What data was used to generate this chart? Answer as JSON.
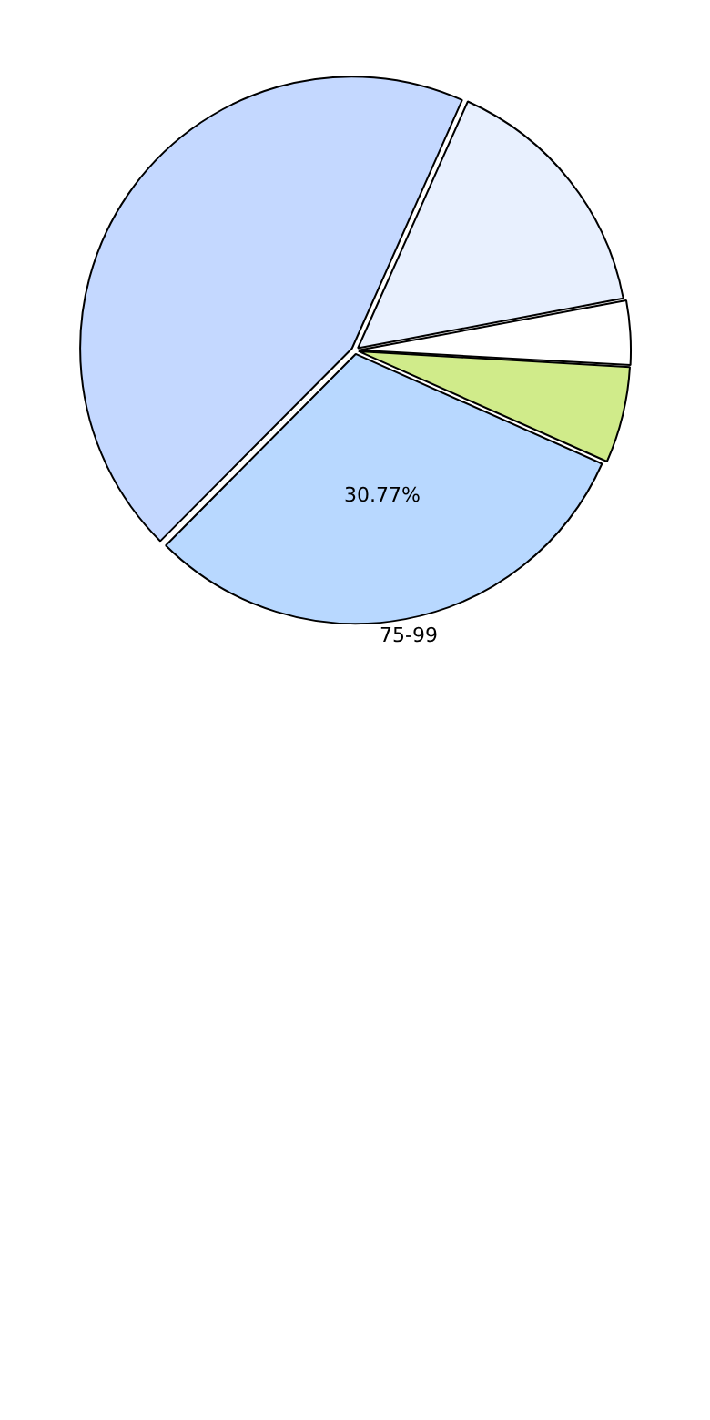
{
  "chart_data": {
    "type": "pie",
    "categories": [
      null,
      null,
      null,
      "75-99",
      null
    ],
    "values": [
      15.38,
      3.85,
      5.77,
      30.77,
      44.23
    ],
    "colors": [
      "#e8f0fe",
      "#ffffff",
      "#d0eb8a",
      "#b8d8ff",
      "#c4d8ff"
    ],
    "value_labels": [
      null,
      null,
      null,
      "30.77%",
      null
    ],
    "legend": false
  }
}
